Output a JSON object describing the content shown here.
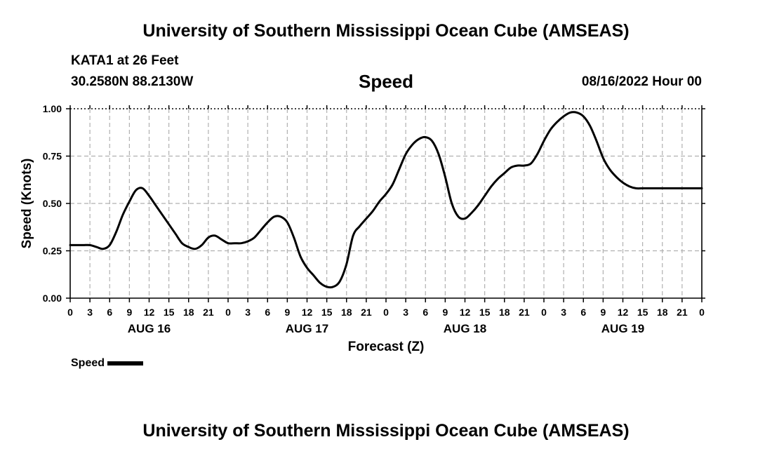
{
  "header": {
    "title": "University of Southern Mississippi Ocean Cube (AMSEAS)",
    "station": "KATA1 at 26 Feet",
    "coords": "30.2580N  88.2130W",
    "date": "08/16/2022 Hour 00"
  },
  "footer": {
    "title": "University of Southern Mississippi Ocean Cube (AMSEAS)"
  },
  "colors": {
    "line": "#000000",
    "grid": "#b0b0b0"
  },
  "chart_data": {
    "type": "line",
    "title": "Speed",
    "xlabel": "Forecast (Z)",
    "ylabel": "Speed (Knots)",
    "ylim": [
      0,
      1
    ],
    "xlim": [
      0,
      96
    ],
    "yticks": [
      "0.00",
      "0.25",
      "0.50",
      "0.75",
      "1.00"
    ],
    "xtick_labels": [
      "0",
      "3",
      "6",
      "9",
      "12",
      "15",
      "18",
      "21",
      "0",
      "3",
      "6",
      "9",
      "12",
      "15",
      "18",
      "21",
      "0",
      "3",
      "6",
      "9",
      "12",
      "15",
      "18",
      "21",
      "0",
      "3",
      "6",
      "9",
      "12",
      "15",
      "18",
      "21",
      "0"
    ],
    "day_labels": [
      "AUG 16",
      "AUG 17",
      "AUG 18",
      "AUG 19"
    ],
    "grid": true,
    "legend": "bottom-left",
    "series": [
      {
        "name": "Speed",
        "x": [
          0,
          1,
          2,
          3,
          4,
          5,
          6,
          7,
          8,
          9,
          10,
          11,
          12,
          13,
          14,
          15,
          16,
          17,
          18,
          19,
          20,
          21,
          22,
          23,
          24,
          25,
          26,
          27,
          28,
          29,
          30,
          31,
          32,
          33,
          34,
          35,
          36,
          37,
          38,
          39,
          40,
          41,
          42,
          43,
          44,
          45,
          46,
          47,
          48,
          49,
          50,
          51,
          52,
          53,
          54,
          55,
          56,
          57,
          58,
          59,
          60,
          61,
          62,
          63,
          64,
          65,
          66,
          67,
          68,
          69,
          70,
          71,
          72,
          73,
          74,
          75,
          76,
          77,
          78,
          79,
          80,
          81,
          82,
          83,
          84,
          85,
          86,
          87,
          88,
          89,
          90,
          91,
          92,
          93,
          94,
          95,
          96
        ],
        "values": [
          0.28,
          0.28,
          0.28,
          0.28,
          0.27,
          0.26,
          0.28,
          0.35,
          0.44,
          0.51,
          0.57,
          0.58,
          0.54,
          0.49,
          0.44,
          0.39,
          0.34,
          0.29,
          0.27,
          0.26,
          0.28,
          0.32,
          0.33,
          0.31,
          0.29,
          0.29,
          0.29,
          0.3,
          0.32,
          0.36,
          0.4,
          0.43,
          0.43,
          0.4,
          0.32,
          0.22,
          0.16,
          0.12,
          0.08,
          0.06,
          0.06,
          0.09,
          0.18,
          0.33,
          0.38,
          0.42,
          0.46,
          0.51,
          0.55,
          0.6,
          0.68,
          0.76,
          0.81,
          0.84,
          0.85,
          0.83,
          0.76,
          0.64,
          0.5,
          0.43,
          0.42,
          0.45,
          0.49,
          0.54,
          0.59,
          0.63,
          0.66,
          0.69,
          0.7,
          0.7,
          0.71,
          0.76,
          0.83,
          0.89,
          0.93,
          0.96,
          0.98,
          0.98,
          0.96,
          0.91,
          0.83,
          0.74,
          0.68,
          0.64,
          0.61,
          0.59,
          0.58,
          0.58,
          0.58,
          0.58,
          0.58,
          0.58,
          0.58,
          0.58,
          0.58,
          0.58,
          0.58
        ]
      }
    ]
  },
  "legend": {
    "label": "Speed"
  }
}
